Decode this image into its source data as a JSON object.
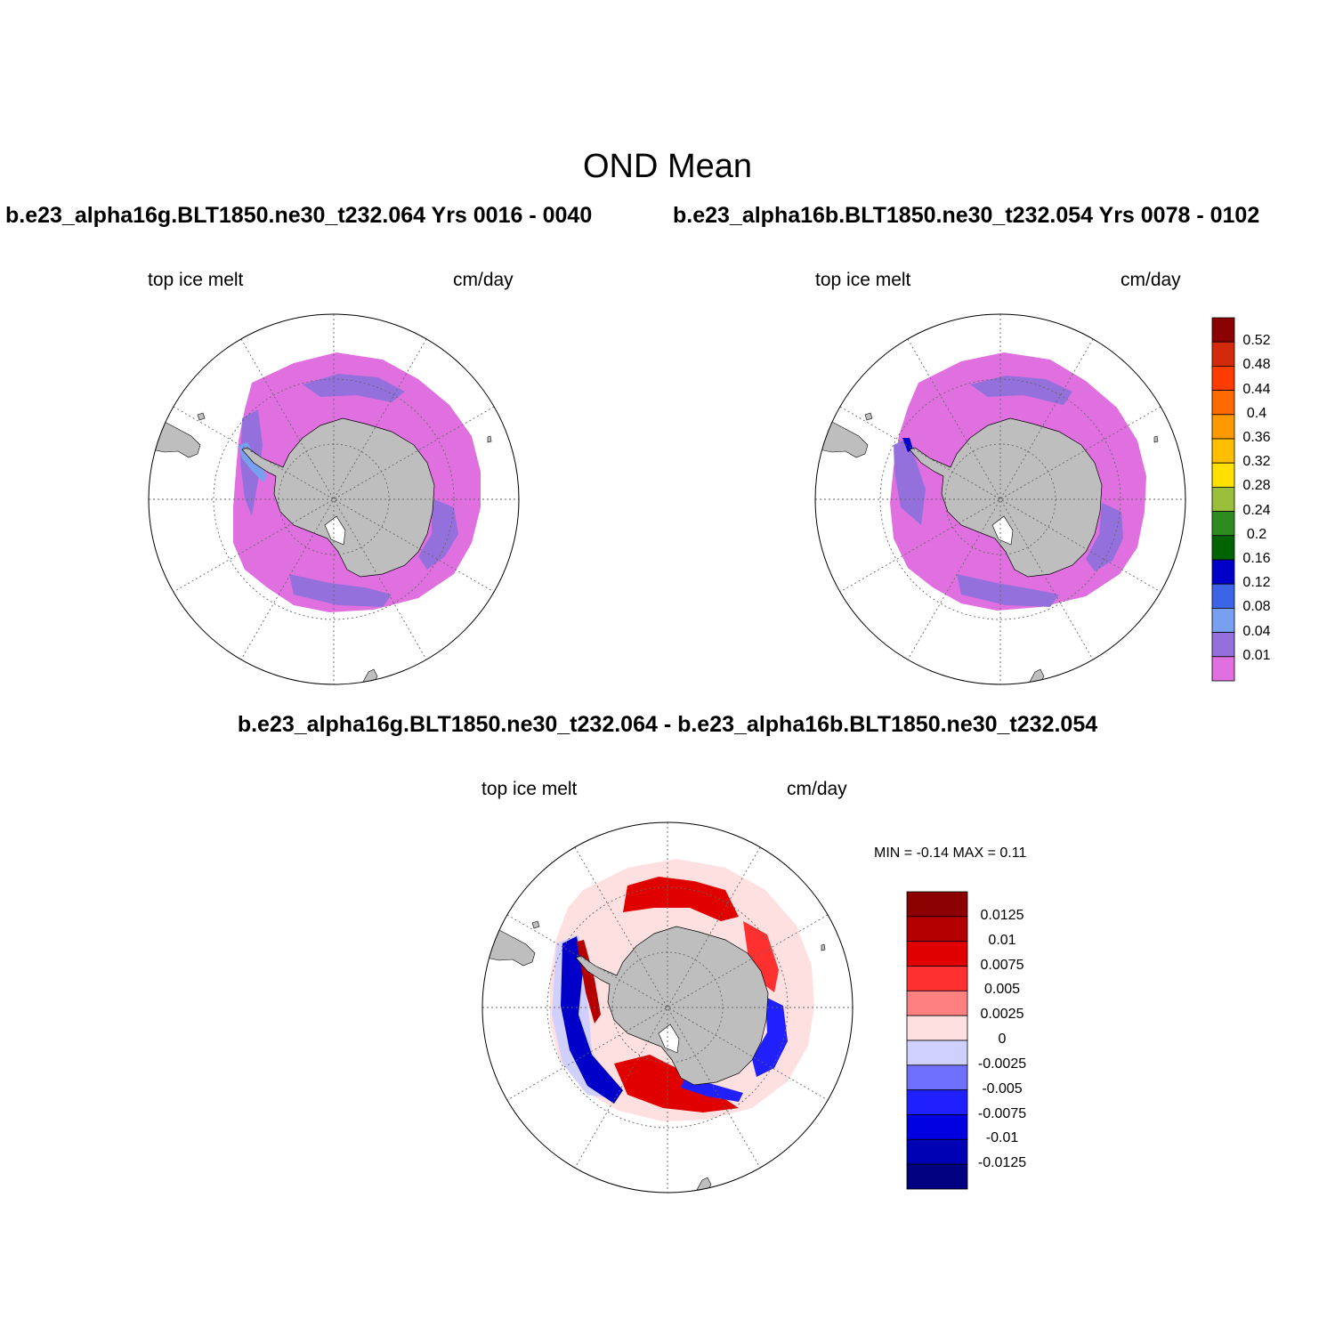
{
  "figure": {
    "title": "OND Mean",
    "case1_title": "b.e23_alpha16g.BLT1850.ne30_t232.064  Yrs 0016 - 0040",
    "case2_title": "b.e23_alpha16b.BLT1850.ne30_t232.054  Yrs 0078 - 0102",
    "diff_title": "b.e23_alpha16g.BLT1850.ne30_t232.064 - b.e23_alpha16b.BLT1850.ne30_t232.054"
  },
  "panels": {
    "case1": {
      "variable": "top ice melt",
      "units": "cm/day"
    },
    "case2": {
      "variable": "top ice melt",
      "units": "cm/day"
    },
    "diff": {
      "variable": "top ice melt",
      "units": "cm/day",
      "minmax_label": "MIN =  -0.14 MAX =   0.11"
    }
  },
  "labelbar_main": {
    "labels": [
      "0.52",
      "0.48",
      "0.44",
      "0.4",
      "0.36",
      "0.32",
      "0.28",
      "0.24",
      "0.2",
      "0.16",
      "0.12",
      "0.08",
      "0.04",
      "0.01"
    ],
    "colors": [
      "#8b0000",
      "#d42a0c",
      "#ff3c00",
      "#ff6a00",
      "#ff9900",
      "#ffbf00",
      "#ffe000",
      "#9abf3a",
      "#2e8b22",
      "#006400",
      "#0000c8",
      "#3c64e6",
      "#78a0f0",
      "#9370db",
      "#e070e0"
    ]
  },
  "labelbar_diff": {
    "labels": [
      "0.0125",
      "0.01",
      "0.0075",
      "0.005",
      "0.0025",
      "0",
      "-0.0025",
      "-0.005",
      "-0.0075",
      "-0.01",
      "-0.0125"
    ],
    "colors": [
      "#8b0000",
      "#b40000",
      "#e00000",
      "#ff3030",
      "#ff8080",
      "#ffe0e0",
      "#d0d0ff",
      "#7070ff",
      "#2020ff",
      "#0000e0",
      "#0000b4",
      "#000080"
    ]
  },
  "colors": {
    "land": "#bebebe",
    "melt_low": "#e070e0",
    "melt_mid": "#9370db",
    "melt_high": "#78a0f0",
    "diff_pos": "#e00000",
    "diff_neg": "#0000c8",
    "diff_pos_light": "#ffe0e0",
    "diff_neg_light": "#d0d0ff"
  }
}
